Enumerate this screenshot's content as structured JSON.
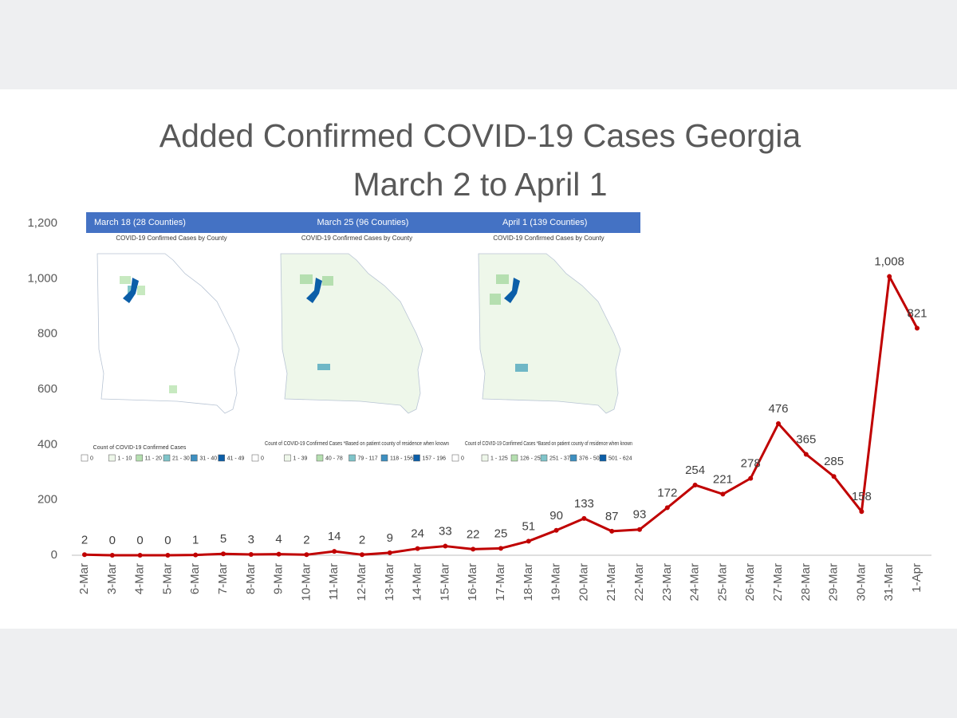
{
  "chart_data": {
    "type": "line",
    "title": [
      "Added Confirmed COVID-19 Cases Georgia",
      "March 2 to April 1"
    ],
    "categories": [
      "2-Mar",
      "3-Mar",
      "4-Mar",
      "5-Mar",
      "6-Mar",
      "7-Mar",
      "8-Mar",
      "9-Mar",
      "10-Mar",
      "11-Mar",
      "12-Mar",
      "13-Mar",
      "14-Mar",
      "15-Mar",
      "16-Mar",
      "17-Mar",
      "18-Mar",
      "19-Mar",
      "20-Mar",
      "21-Mar",
      "22-Mar",
      "23-Mar",
      "24-Mar",
      "25-Mar",
      "26-Mar",
      "27-Mar",
      "28-Mar",
      "29-Mar",
      "30-Mar",
      "31-Mar",
      "1-Apr"
    ],
    "values": [
      2,
      0,
      0,
      0,
      1,
      5,
      3,
      4,
      2,
      14,
      2,
      9,
      24,
      33,
      22,
      25,
      51,
      90,
      133,
      87,
      93,
      172,
      254,
      221,
      278,
      476,
      365,
      285,
      158,
      1008,
      821
    ],
    "value_labels": [
      "2",
      "0",
      "0",
      "0",
      "1",
      "5",
      "3",
      "4",
      "2",
      "14",
      "2",
      "9",
      "24",
      "33",
      "22",
      "25",
      "51",
      "90",
      "133",
      "87",
      "93",
      "172",
      "254",
      "221",
      "278",
      "476",
      "365",
      "285",
      "158",
      "1,008",
      "821"
    ],
    "color": "#c00000",
    "ylim": [
      0,
      1200
    ],
    "yticks": [
      0,
      200,
      400,
      600,
      800,
      {
        "value": 1000,
        "label": "1,000"
      },
      {
        "value": 1200,
        "label": "1,200"
      }
    ],
    "grid": false
  },
  "insets": [
    {
      "header": "March 18 (28 Counties)",
      "title": "COVID-19 Confirmed Cases by County",
      "legend_title": "Count of COVID-19 Confirmed Cases",
      "legend_labels": [
        "0",
        "1 - 10",
        "11 - 20",
        "21 - 30",
        "31 - 40",
        "41 - 49"
      ]
    },
    {
      "header": "March 25 (96 Counties)",
      "title": "COVID-19 Confirmed Cases by County",
      "legend_title": "Count of COVID-19 Confirmed Cases *Based on patient county of residence when known",
      "legend_labels": [
        "0",
        "1 - 39",
        "40 - 78",
        "79 - 117",
        "118 - 156",
        "157 - 196"
      ]
    },
    {
      "header": "April 1 (139 Counties)",
      "title": "COVID-19 Confirmed Cases by County",
      "legend_title": "Count of COVID-19 Confirmed Cases *Based on patient county of residence when known",
      "legend_labels": [
        "0",
        "1 - 125",
        "126 - 250",
        "251 - 375",
        "376 - 500",
        "501 - 624"
      ]
    }
  ]
}
